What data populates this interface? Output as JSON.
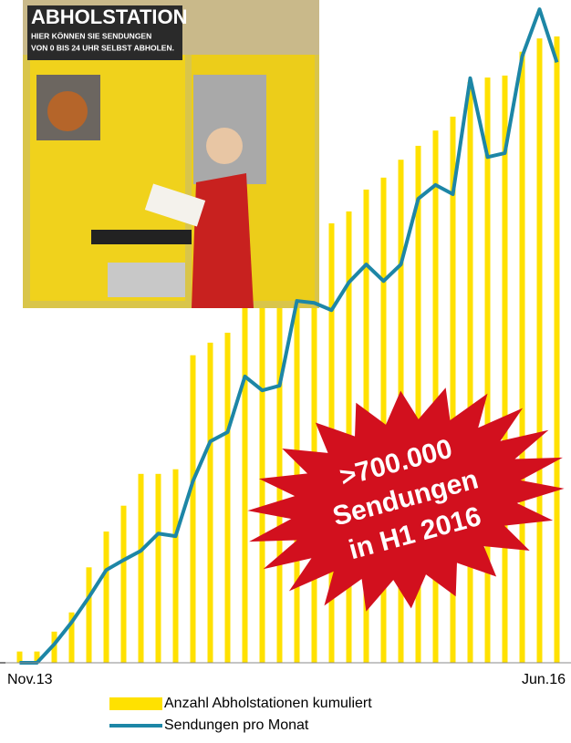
{
  "chart_data": {
    "type": "bar-line",
    "categories": [
      "Nov.13",
      null,
      null,
      null,
      null,
      null,
      null,
      null,
      null,
      null,
      null,
      null,
      null,
      null,
      null,
      null,
      null,
      null,
      null,
      null,
      null,
      null,
      null,
      null,
      null,
      null,
      null,
      null,
      null,
      null,
      null,
      "Jun.16"
    ],
    "ylim": [
      0,
      100
    ],
    "series": [
      {
        "name": "Anzahl Abholstationen kumuliert",
        "type": "bar",
        "color": "#ffe100",
        "values": [
          1.7,
          1.7,
          4.7,
          7.6,
          14.4,
          19.8,
          23.7,
          28.5,
          28.5,
          29.2,
          46.4,
          48.3,
          49.8,
          53.9,
          58.0,
          60.1,
          62.9,
          64.9,
          66.3,
          68.1,
          71.4,
          73.2,
          75.9,
          78.0,
          80.3,
          82.4,
          87.6,
          88.3,
          88.6,
          92.2,
          94.2,
          94.5
        ]
      },
      {
        "name": "Sendungen pro Monat",
        "type": "line",
        "color": "#1d86a6",
        "values": [
          0,
          0,
          2.8,
          6.1,
          9.9,
          14.0,
          15.5,
          16.9,
          19.5,
          19.1,
          27.4,
          33.4,
          34.8,
          43.2,
          41.1,
          41.8,
          54.6,
          54.3,
          53.2,
          57.4,
          60.1,
          57.6,
          60.1,
          70.0,
          72.1,
          70.7,
          88.2,
          76.3,
          76.9,
          91.5,
          98.6,
          90.6
        ]
      }
    ],
    "annotation": [
      ">700.000",
      "Sendungen",
      "in H1 2016"
    ]
  },
  "photo": {
    "title": "ABHOLSTATION",
    "subtitle": [
      "HIER KÖNNEN SIE SENDUNGEN",
      "VON 0 BIS 24 UHR SELBST ABHOLEN."
    ]
  }
}
